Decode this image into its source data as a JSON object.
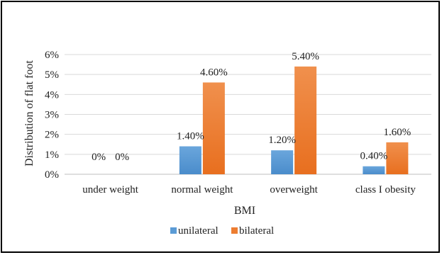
{
  "chart_data": {
    "type": "bar",
    "title": "",
    "xlabel": "BMI",
    "ylabel": "Distribution of flat foot",
    "ylim": [
      0,
      6
    ],
    "y_ticks": [
      "0%",
      "1%",
      "2%",
      "3%",
      "4%",
      "5%",
      "6%"
    ],
    "grid": true,
    "legend_position": "bottom",
    "categories": [
      "under weight",
      "normal weight",
      "overweight",
      "class I obesity"
    ],
    "series": [
      {
        "name": "unilateral",
        "color": "#5b9bd5",
        "values": [
          0,
          1.4,
          1.2,
          0.4
        ],
        "labels": [
          "0%",
          "1.40%",
          "1.20%",
          "0.40%"
        ]
      },
      {
        "name": "bilateral",
        "color": "#ed7d31",
        "values": [
          0,
          4.6,
          5.4,
          1.6
        ],
        "labels": [
          "0%",
          "4.60%",
          "5.40%",
          "1.60%"
        ]
      }
    ]
  }
}
